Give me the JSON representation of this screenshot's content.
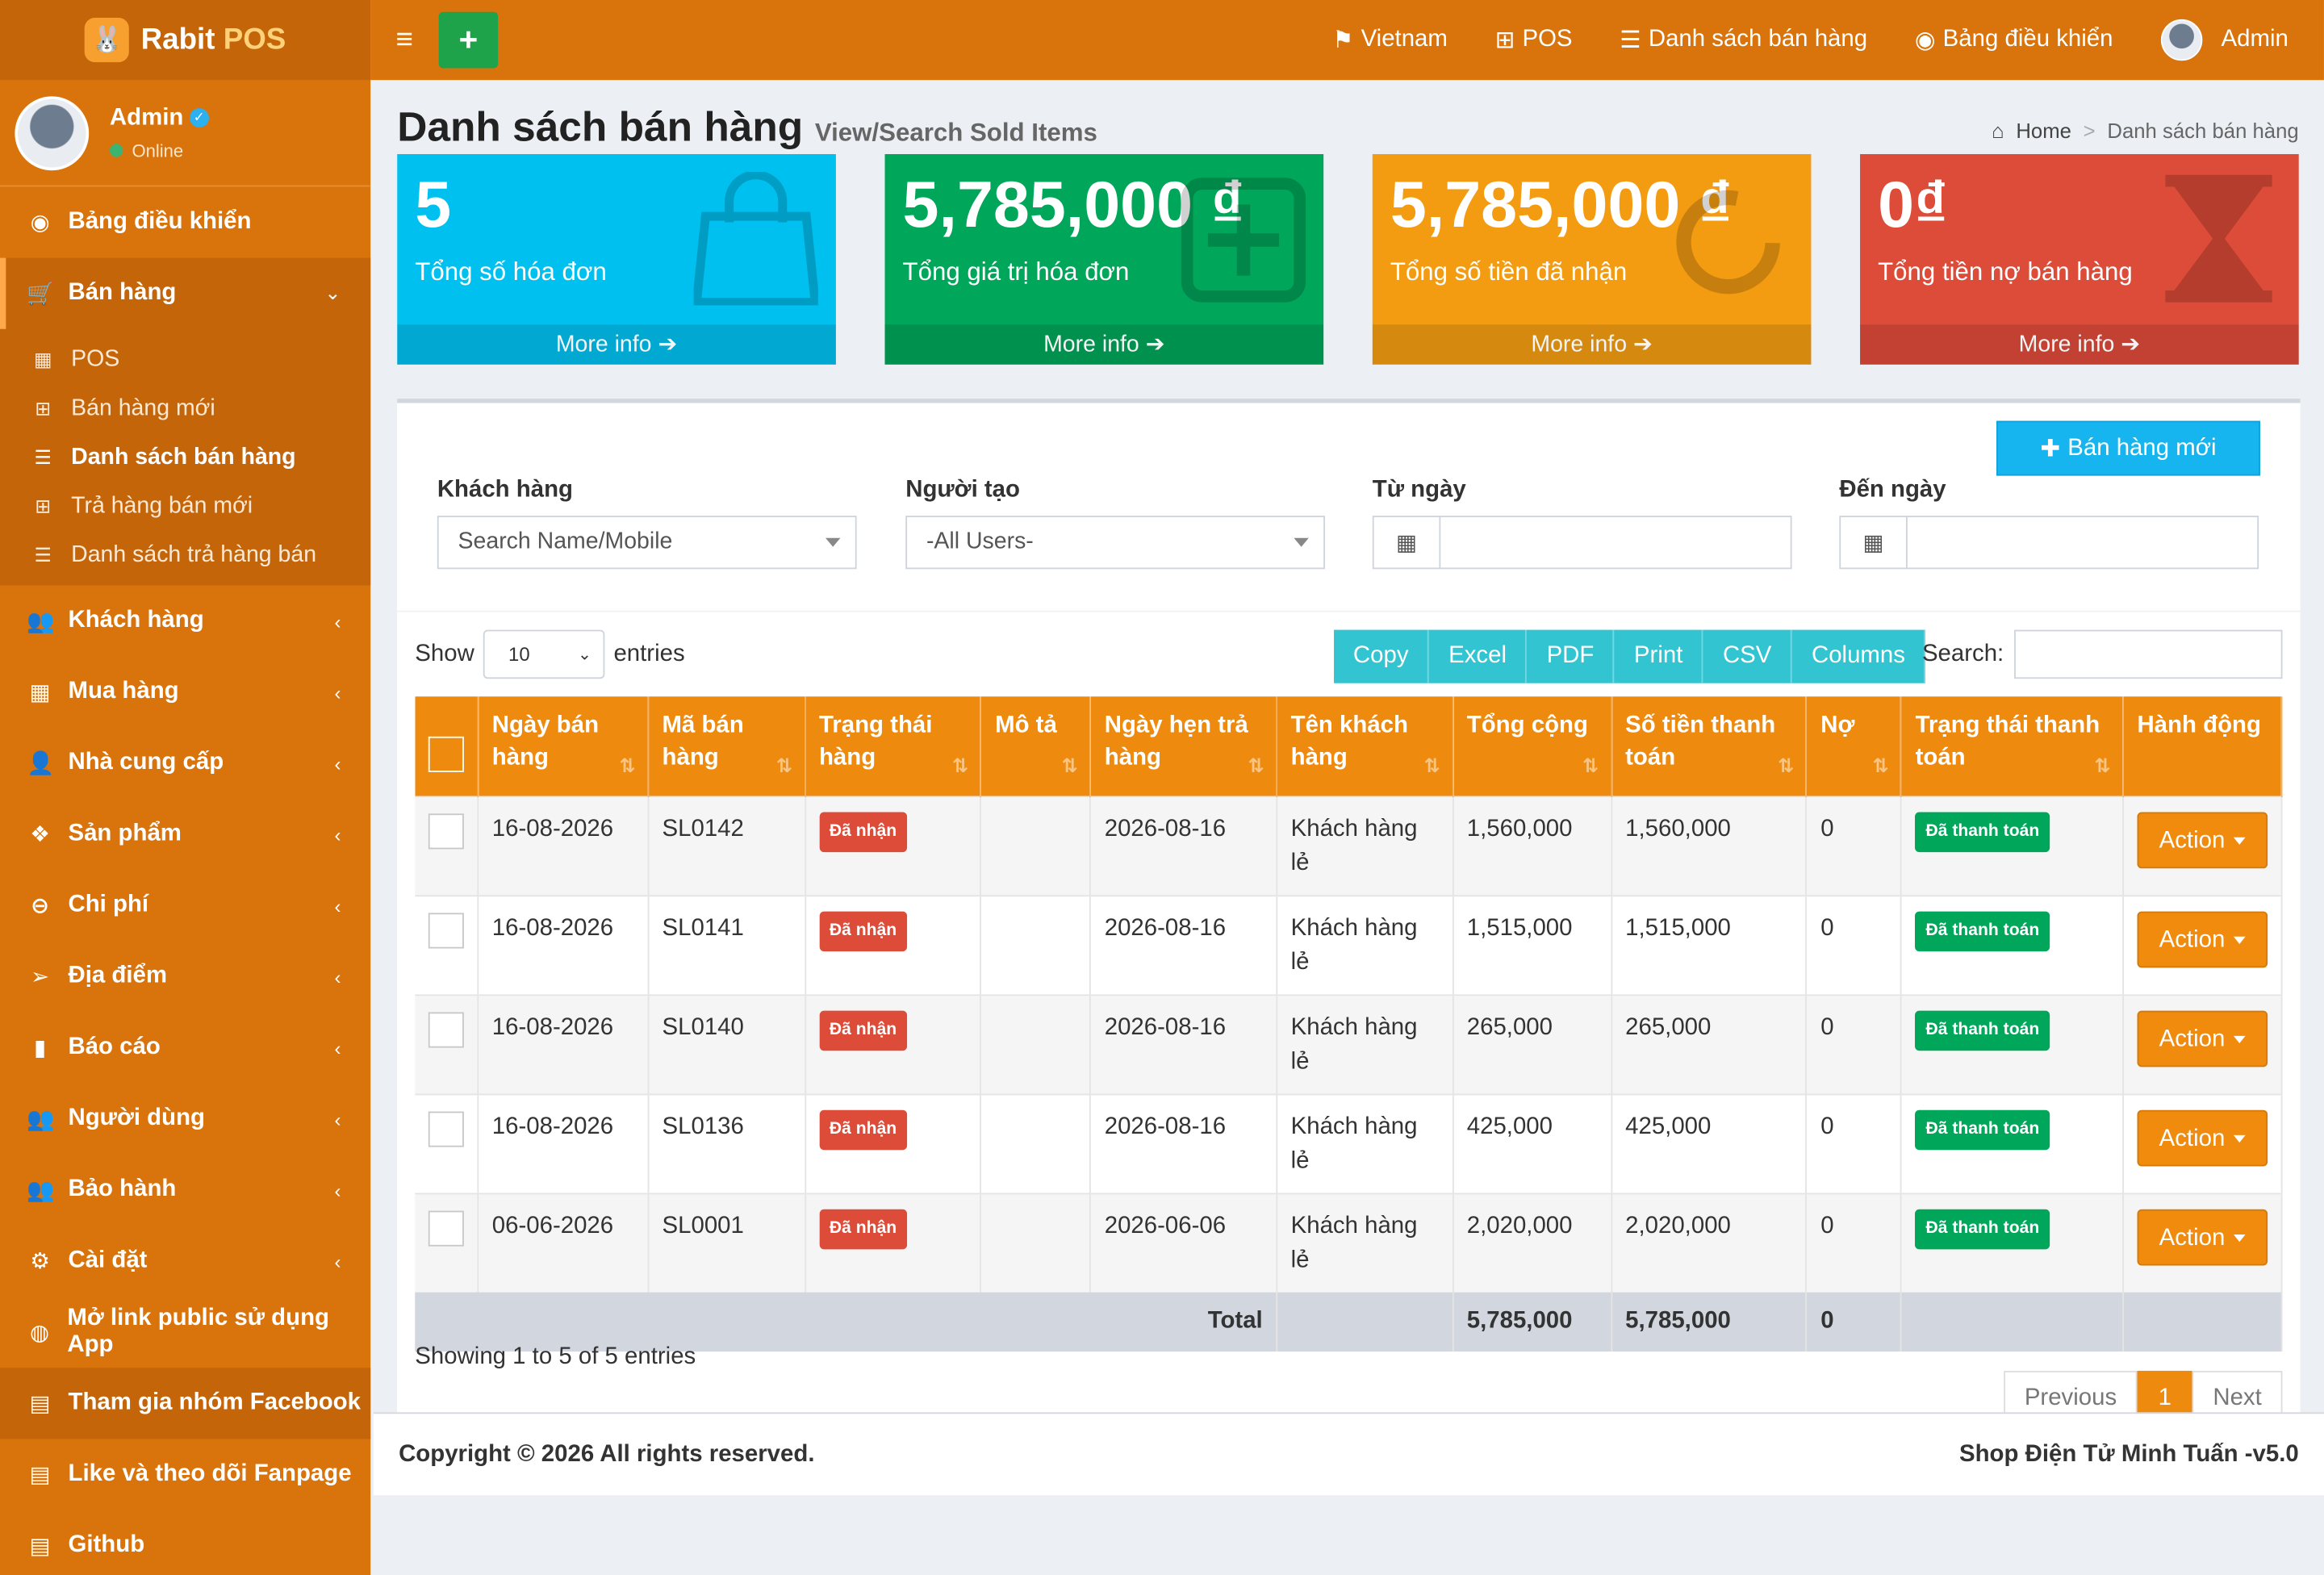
{
  "brand": {
    "name": "Rabit",
    "suffix": "POS"
  },
  "user": {
    "name": "Admin",
    "status": "Online"
  },
  "sidebar": {
    "dashboard": "Bảng điều khiển",
    "sales": "Bán hàng",
    "sales_sub": [
      "POS",
      "Bán hàng mới",
      "Danh sách bán hàng",
      "Trả hàng bán mới",
      "Danh sách trả hàng bán"
    ],
    "items": [
      "Khách hàng",
      "Mua hàng",
      "Nhà cung cấp",
      "Sản phẩm",
      "Chi phí",
      "Địa điểm",
      "Báo cáo",
      "Người dùng",
      "Bảo hành",
      "Cài đặt"
    ],
    "public_link": "Mở link public sử dụng App",
    "facebook_group": "Tham gia nhóm Facebook",
    "fanpage": "Like và theo dõi Fanpage",
    "github": "Github"
  },
  "topbar": {
    "language": "Vietnam",
    "pos": "POS",
    "sales_list": "Danh sách bán hàng",
    "dashboard": "Bảng điều khiển",
    "user": "Admin"
  },
  "page": {
    "title": "Danh sách bán hàng",
    "subtitle": "View/Search Sold Items",
    "breadcrumb_home": "Home",
    "breadcrumb_current": "Danh sách bán hàng"
  },
  "stats": [
    {
      "value": "5",
      "label": "Tổng số hóa đơn",
      "more": "More info"
    },
    {
      "value": "5,785,000 ₫",
      "label": "Tổng giá trị hóa đơn",
      "more": "More info"
    },
    {
      "value": "5,785,000 ₫",
      "label": "Tổng số tiền đã nhận",
      "more": "More info"
    },
    {
      "value": "0₫",
      "label": "Tổng tiền nợ bán hàng",
      "more": "More info"
    }
  ],
  "filters": {
    "new_sale_button": "Bán hàng mới",
    "customer_label": "Khách hàng",
    "customer_placeholder": "Search Name/Mobile",
    "creator_label": "Người tạo",
    "creator_value": "-All Users-",
    "from_label": "Từ ngày",
    "to_label": "Đến ngày"
  },
  "table_controls": {
    "show": "Show",
    "entries": "entries",
    "page_length": "10",
    "export_buttons": [
      "Copy",
      "Excel",
      "PDF",
      "Print",
      "CSV",
      "Columns"
    ],
    "search_label": "Search:"
  },
  "columns": [
    "Ngày bán hàng",
    "Mã bán hàng",
    "Trạng thái hàng",
    "Mô tả",
    "Ngày hẹn trả hàng",
    "Tên khách hàng",
    "Tổng cộng",
    "Số tiền thanh toán",
    "Nợ",
    "Trạng thái thanh toán",
    "Hành động"
  ],
  "rows": [
    {
      "date": "16-08-2026",
      "code": "SL0142",
      "status": "Đã nhận",
      "desc": "",
      "return_date": "2026-08-16",
      "customer": "Khách hàng lẻ",
      "total": "1,560,000",
      "paid": "1,560,000",
      "debt": "0",
      "pay_status": "Đã thanh toán",
      "action": "Action"
    },
    {
      "date": "16-08-2026",
      "code": "SL0141",
      "status": "Đã nhận",
      "desc": "",
      "return_date": "2026-08-16",
      "customer": "Khách hàng lẻ",
      "total": "1,515,000",
      "paid": "1,515,000",
      "debt": "0",
      "pay_status": "Đã thanh toán",
      "action": "Action"
    },
    {
      "date": "16-08-2026",
      "code": "SL0140",
      "status": "Đã nhận",
      "desc": "",
      "return_date": "2026-08-16",
      "customer": "Khách hàng lẻ",
      "total": "265,000",
      "paid": "265,000",
      "debt": "0",
      "pay_status": "Đã thanh toán",
      "action": "Action"
    },
    {
      "date": "16-08-2026",
      "code": "SL0136",
      "status": "Đã nhận",
      "desc": "",
      "return_date": "2026-08-16",
      "customer": "Khách hàng lẻ",
      "total": "425,000",
      "paid": "425,000",
      "debt": "0",
      "pay_status": "Đã thanh toán",
      "action": "Action"
    },
    {
      "date": "06-06-2026",
      "code": "SL0001",
      "status": "Đã nhận",
      "desc": "",
      "return_date": "2026-06-06",
      "customer": "Khách hàng lẻ",
      "total": "2,020,000",
      "paid": "2,020,000",
      "debt": "0",
      "pay_status": "Đã thanh toán",
      "action": "Action"
    }
  ],
  "totals": {
    "label": "Total",
    "total": "5,785,000",
    "paid": "5,785,000",
    "debt": "0"
  },
  "pagination": {
    "info": "Showing 1 to 5 of 5 entries",
    "previous": "Previous",
    "page": "1",
    "next": "Next"
  },
  "footer": {
    "copyright": "Copyright © 2026 All rights reserved.",
    "shop": "Shop Điện Tử Minh Tuấn -v5.0"
  },
  "colors": {
    "primary": "#d9730c",
    "header": "#ee8b0f",
    "aqua": "#00c0ef",
    "green": "#00a65a",
    "yellow": "#f39c12",
    "red": "#dd4b39"
  }
}
